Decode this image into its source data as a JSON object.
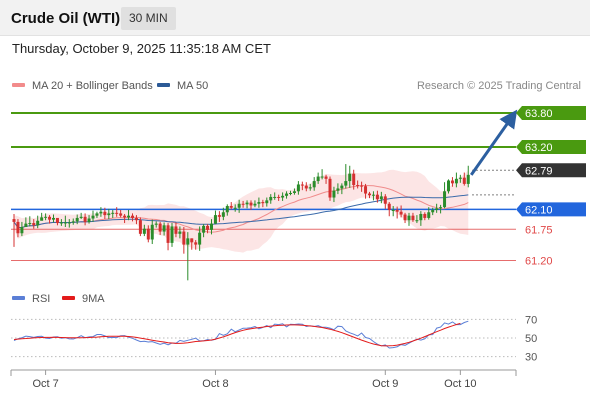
{
  "header": {
    "title": "Crude Oil (WTI)",
    "timeframe": "30 MIN"
  },
  "timestamp": "Thursday, October 9, 2025 11:35:18 AM CET",
  "legend": {
    "ma_bb": {
      "label": "MA 20 + Bollinger Bands",
      "color": "#f28b8b"
    },
    "ma50": {
      "label": "MA 50",
      "color": "#2c5a96"
    }
  },
  "credit": "Research © 2025 Trading Central",
  "rsi_legend": {
    "rsi": {
      "label": "RSI",
      "color": "#5b7fd6"
    },
    "ma9": {
      "label": "9MA",
      "color": "#e31b1b"
    }
  },
  "chart_data": [
    {
      "type": "candlestick",
      "ylim": [
        60.75,
        64.1
      ],
      "current_price": 62.79,
      "levels": [
        {
          "value": 63.8,
          "label": "63.80",
          "kind": "resistance",
          "color": "#4a9a10"
        },
        {
          "value": 63.2,
          "label": "63.20",
          "kind": "resistance",
          "color": "#4a9a10"
        },
        {
          "value": 62.79,
          "label": "62.79",
          "kind": "last",
          "color": "#333333"
        },
        {
          "value": 62.1,
          "label": "62.10",
          "kind": "pivot",
          "color": "#2266dd"
        },
        {
          "value": 61.75,
          "label": "61.75",
          "kind": "support",
          "color": "#e04848"
        },
        {
          "value": 61.2,
          "label": "61.20",
          "kind": "support",
          "color": "#e04848"
        }
      ],
      "colors": {
        "up": "#2a8c2a",
        "down": "#d43030",
        "band": "#fbdcdc",
        "ma20": "#f08c8c",
        "ma50": "#3a6aaa",
        "arrow": "#2c5fa0"
      },
      "x_ticks": [
        {
          "label": "Oct 7",
          "index": 8
        },
        {
          "label": "Oct 8",
          "index": 51
        },
        {
          "label": "Oct 9",
          "index": 94
        },
        {
          "label": "Oct 10",
          "index": 113
        }
      ],
      "n_slots": 120,
      "close": [
        61.88,
        61.68,
        61.79,
        61.85,
        61.86,
        61.82,
        61.9,
        61.96,
        61.97,
        61.92,
        61.95,
        61.86,
        61.87,
        61.87,
        61.87,
        61.89,
        61.95,
        61.97,
        61.88,
        61.94,
        61.99,
        62.03,
        62.06,
        62.0,
        62.03,
        62.04,
        62.03,
        61.99,
        61.96,
        61.99,
        61.95,
        61.91,
        61.67,
        61.76,
        61.57,
        61.83,
        61.85,
        61.71,
        61.82,
        61.51,
        61.8,
        61.67,
        61.71,
        61.48,
        61.59,
        61.52,
        61.48,
        61.69,
        61.81,
        61.74,
        61.85,
        62.0,
        61.97,
        62.05,
        62.16,
        62.13,
        62.13,
        62.2,
        62.19,
        62.22,
        62.17,
        62.2,
        62.23,
        62.21,
        62.26,
        62.32,
        62.32,
        62.31,
        62.34,
        62.38,
        62.39,
        62.42,
        62.54,
        62.52,
        62.47,
        62.49,
        62.6,
        62.68,
        62.68,
        62.64,
        62.31,
        62.43,
        62.47,
        62.52,
        62.6,
        62.73,
        62.53,
        62.52,
        62.51,
        62.38,
        62.35,
        62.36,
        62.28,
        62.33,
        62.2,
        62.09,
        62.09,
        62.06,
        62.01,
        61.91,
        61.99,
        61.91,
        61.91,
        62.02,
        61.95,
        62.05,
        62.09,
        62.12,
        62.14,
        62.42,
        62.61,
        62.56,
        62.64,
        62.66,
        62.55,
        62.71
      ],
      "high": [
        62.02,
        61.93,
        61.88,
        61.96,
        61.98,
        61.93,
        61.99,
        62.04,
        62.03,
        62.0,
        62.01,
        61.94,
        61.93,
        61.99,
        61.93,
        61.94,
        62.01,
        62.04,
        62.03,
        62.0,
        62.08,
        62.06,
        62.14,
        62.13,
        62.11,
        62.09,
        62.14,
        62.09,
        62.02,
        62.09,
        62.03,
        62.0,
        61.96,
        61.83,
        61.82,
        61.92,
        61.89,
        61.88,
        61.87,
        61.86,
        61.86,
        61.87,
        61.8,
        61.79,
        61.7,
        61.59,
        61.56,
        61.8,
        61.84,
        61.84,
        61.93,
        62.08,
        62.07,
        62.13,
        62.19,
        62.23,
        62.19,
        62.27,
        62.25,
        62.26,
        62.26,
        62.26,
        62.31,
        62.27,
        62.31,
        62.37,
        62.4,
        62.36,
        62.4,
        62.42,
        62.43,
        62.47,
        62.6,
        62.59,
        62.58,
        62.55,
        62.67,
        62.75,
        62.81,
        62.71,
        62.68,
        62.5,
        62.56,
        62.56,
        62.9,
        62.87,
        62.8,
        62.61,
        62.59,
        62.55,
        62.41,
        62.42,
        62.43,
        62.41,
        62.37,
        62.23,
        62.16,
        62.15,
        62.17,
        62.04,
        62.04,
        62.04,
        62.0,
        62.07,
        62.05,
        62.14,
        62.13,
        62.2,
        62.18,
        62.58,
        62.63,
        62.67,
        62.75,
        62.71,
        62.75,
        62.87
      ],
      "low": [
        61.44,
        61.61,
        61.63,
        61.8,
        61.8,
        61.76,
        61.77,
        61.91,
        61.91,
        61.85,
        61.87,
        61.82,
        61.81,
        61.79,
        61.78,
        61.83,
        61.84,
        61.93,
        61.82,
        61.85,
        61.88,
        61.95,
        61.97,
        61.93,
        61.93,
        61.95,
        61.97,
        61.96,
        61.86,
        61.91,
        61.89,
        61.84,
        61.63,
        61.63,
        61.52,
        61.49,
        61.78,
        61.65,
        61.64,
        61.38,
        61.44,
        61.61,
        61.59,
        61.32,
        60.85,
        61.39,
        61.39,
        61.37,
        61.61,
        61.68,
        61.66,
        61.84,
        61.88,
        61.91,
        61.99,
        62.1,
        62.06,
        62.04,
        62.13,
        62.12,
        62.09,
        62.14,
        62.13,
        62.14,
        62.15,
        62.2,
        62.27,
        62.25,
        62.25,
        62.29,
        62.35,
        62.36,
        62.36,
        62.44,
        62.42,
        62.43,
        62.43,
        62.55,
        62.63,
        62.55,
        62.25,
        62.23,
        62.37,
        62.37,
        62.47,
        62.48,
        62.45,
        62.47,
        62.41,
        62.29,
        62.3,
        62.26,
        62.22,
        62.21,
        62.11,
        61.98,
        61.98,
        61.94,
        61.96,
        61.86,
        61.81,
        61.88,
        61.86,
        61.81,
        61.91,
        61.92,
        62.0,
        62.04,
        62.03,
        62.12,
        62.38,
        62.5,
        62.49,
        62.57,
        62.52,
        62.49
      ]
    },
    {
      "type": "line",
      "title": "RSI",
      "ylim": [
        20,
        80
      ],
      "y_ticks": [
        30,
        50,
        70
      ],
      "series": [
        {
          "name": "RSI",
          "values": [
            47.2,
            49.1,
            50.3,
            52.0,
            51.5,
            50.6,
            51.6,
            51.9,
            49.9,
            49.5,
            51.1,
            51.3,
            49.8,
            50.3,
            49.0,
            48.9,
            50.3,
            52.5,
            50.3,
            51.2,
            51.5,
            53.8,
            53.7,
            52.3,
            50.4,
            50.6,
            50.4,
            52.4,
            52.6,
            50.9,
            49.7,
            47.9,
            46.1,
            46.5,
            45.7,
            46.1,
            44.6,
            43.2,
            44.4,
            42.7,
            44.6,
            44.3,
            47.4,
            46.4,
            47.5,
            48.6,
            49.8,
            46.9,
            47.0,
            48.4,
            47.6,
            48.6,
            54.7,
            52.9,
            54.5,
            59.4,
            56.6,
            58.7,
            60.4,
            60.6,
            61.0,
            62.3,
            59.9,
            61.4,
            63.3,
            61.1,
            64.9,
            64.4,
            65.2,
            61.9,
            64.8,
            64.5,
            65.0,
            64.7,
            62.3,
            63.1,
            62.3,
            63.3,
            61.6,
            61.6,
            60.6,
            58.9,
            62.6,
            62.2,
            57.5,
            55.6,
            54.1,
            52.2,
            55.4,
            50.5,
            49.5,
            46.2,
            43.4,
            41.5,
            42.6,
            39.3,
            39.7,
            40.6,
            42.9,
            42.2,
            44.4,
            46.7,
            48.8,
            47.7,
            49.1,
            53.4,
            53.6,
            60.6,
            61.7,
            66.2,
            64.9,
            67.2,
            64.4,
            64.4,
            66.6,
            68.0
          ]
        },
        {
          "name": "9MA",
          "values": [
            48.4,
            48.8,
            49.2,
            49.5,
            49.8,
            50.1,
            50.4,
            50.5,
            50.6,
            50.6,
            50.7,
            50.6,
            50.5,
            50.4,
            50.3,
            50.2,
            50.2,
            50.3,
            50.4,
            50.5,
            50.7,
            51.0,
            51.3,
            51.6,
            51.8,
            51.9,
            51.9,
            51.9,
            51.9,
            51.6,
            51.2,
            50.6,
            49.9,
            49.1,
            48.4,
            47.6,
            46.9,
            46.2,
            45.7,
            45.0,
            44.6,
            44.2,
            44.2,
            44.5,
            45.0,
            45.6,
            46.2,
            46.6,
            46.9,
            47.3,
            47.9,
            48.8,
            50.0,
            51.3,
            52.7,
            54.3,
            55.8,
            57.1,
            58.3,
            59.2,
            59.9,
            60.6,
            61.1,
            61.7,
            62.3,
            62.8,
            63.2,
            63.5,
            63.7,
            63.9,
            64.0,
            64.0,
            63.9,
            63.6,
            63.3,
            62.9,
            62.4,
            61.8,
            61.2,
            60.3,
            59.4,
            58.3,
            57.1,
            55.7,
            54.2,
            52.6,
            51.0,
            49.4,
            47.8,
            46.3,
            44.9,
            43.6,
            42.6,
            41.8,
            41.5,
            41.6,
            41.9,
            42.4,
            43.2,
            44.2,
            45.4,
            46.8,
            48.3,
            49.8,
            51.5,
            53.2,
            55.0,
            56.7,
            58.4,
            60.2,
            61.7,
            63.1,
            64.5,
            65.6
          ]
        }
      ]
    }
  ]
}
